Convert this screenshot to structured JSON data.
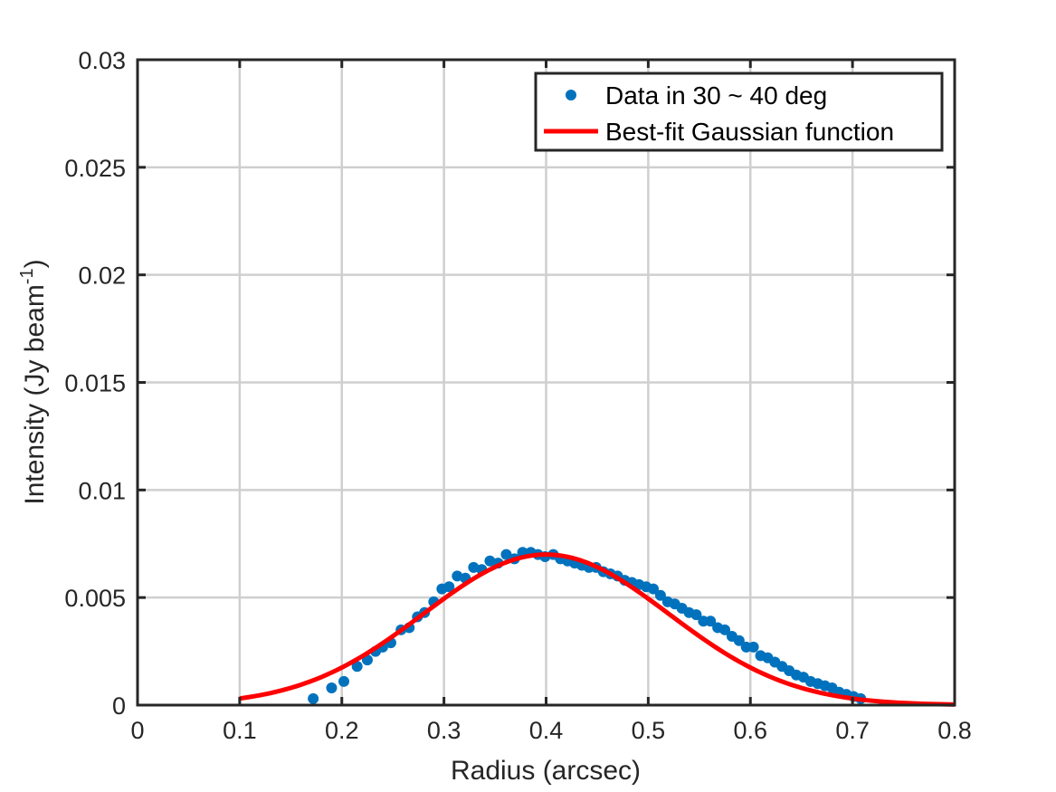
{
  "chart_data": {
    "type": "scatter",
    "xlabel": "Radius (arcsec)",
    "ylabel_main": "Intensity (Jy beam",
    "ylabel_sup": "-1",
    "ylabel_close": ")",
    "xlim": [
      0,
      0.8
    ],
    "ylim": [
      0,
      0.03
    ],
    "xticks": [
      0,
      0.1,
      0.2,
      0.3,
      0.4,
      0.5,
      0.6,
      0.7,
      0.8
    ],
    "xtick_labels": [
      "0",
      "0.1",
      "0.2",
      "0.3",
      "0.4",
      "0.5",
      "0.6",
      "0.7",
      "0.8"
    ],
    "yticks": [
      0,
      0.005,
      0.01,
      0.015,
      0.02,
      0.025,
      0.03
    ],
    "ytick_labels": [
      "0",
      "0.005",
      "0.01",
      "0.015",
      "0.02",
      "0.025",
      "0.03"
    ],
    "grid": true,
    "legend_position": "top-right",
    "series": [
      {
        "name": "Data in 30 ~ 40 deg",
        "kind": "points",
        "color": "#0072BD",
        "x": [
          0.172,
          0.19,
          0.202,
          0.215,
          0.225,
          0.233,
          0.24,
          0.248,
          0.258,
          0.266,
          0.274,
          0.281,
          0.29,
          0.298,
          0.305,
          0.313,
          0.321,
          0.329,
          0.337,
          0.345,
          0.353,
          0.361,
          0.369,
          0.377,
          0.385,
          0.392,
          0.399,
          0.407,
          0.414,
          0.421,
          0.428,
          0.435,
          0.442,
          0.449,
          0.456,
          0.463,
          0.47,
          0.477,
          0.484,
          0.491,
          0.498,
          0.505,
          0.512,
          0.519,
          0.526,
          0.533,
          0.54,
          0.547,
          0.554,
          0.561,
          0.568,
          0.575,
          0.582,
          0.589,
          0.596,
          0.603,
          0.61,
          0.617,
          0.624,
          0.631,
          0.638,
          0.645,
          0.652,
          0.659,
          0.666,
          0.673,
          0.68,
          0.687,
          0.694,
          0.701,
          0.708
        ],
        "y": [
          0.0003,
          0.0008,
          0.0011,
          0.0018,
          0.0021,
          0.0025,
          0.0027,
          0.0029,
          0.0035,
          0.0036,
          0.0041,
          0.0043,
          0.0048,
          0.0054,
          0.0055,
          0.006,
          0.0059,
          0.0064,
          0.0063,
          0.0067,
          0.0066,
          0.007,
          0.0068,
          0.0071,
          0.0071,
          0.007,
          0.0069,
          0.007,
          0.0068,
          0.0067,
          0.0066,
          0.0065,
          0.0064,
          0.0064,
          0.0062,
          0.0061,
          0.006,
          0.0058,
          0.0057,
          0.0056,
          0.0055,
          0.0054,
          0.0051,
          0.0048,
          0.0047,
          0.0045,
          0.0043,
          0.0042,
          0.0039,
          0.0039,
          0.0036,
          0.0035,
          0.0032,
          0.003,
          0.0027,
          0.0027,
          0.0023,
          0.0022,
          0.002,
          0.0018,
          0.0016,
          0.0014,
          0.0013,
          0.0011,
          0.001,
          0.0009,
          0.0008,
          0.0006,
          0.0005,
          0.0004,
          0.0003
        ]
      },
      {
        "name": "Best-fit Gaussian function",
        "kind": "line",
        "color": "#FF0000",
        "amplitude": 0.007,
        "center": 0.4,
        "sigma": 0.12,
        "x_range": [
          0.1,
          0.8
        ]
      }
    ]
  }
}
